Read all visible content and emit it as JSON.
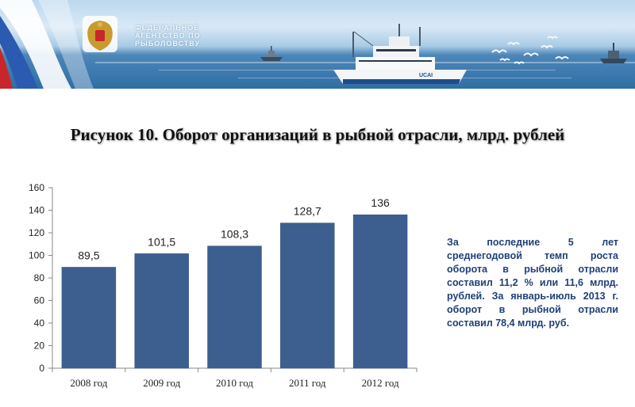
{
  "header": {
    "agency_name": "ФЕДЕРАЛЬНОЕ АГЕНТСТВО ПО РЫБОЛОВСТВУ",
    "ship_marking": "UCAI"
  },
  "chart_data": {
    "type": "bar",
    "title": "Рисунок 10. Оборот организаций в рыбной отрасли, млрд. рублей",
    "categories": [
      "2008 год",
      "2009 год",
      "2010 год",
      "2011 год",
      "2012 год"
    ],
    "values": [
      89.5,
      101.5,
      108.3,
      128.7,
      136
    ],
    "value_labels": [
      "89,5",
      "101,5",
      "108,3",
      "128,7",
      "136"
    ],
    "ylim": [
      0,
      160
    ],
    "yticks": [
      0,
      20,
      40,
      60,
      80,
      100,
      120,
      140,
      160
    ],
    "xlabel": "",
    "ylabel": "",
    "grid": false,
    "bar_color": "#3d5f8f"
  },
  "annotation": {
    "text": "За последние 5 лет среднегодовой темп роста оборота в рыбной отрасли составил 11,2 % или 11,6 млрд. рублей. За январь-июль 2013 г. оборот в рыбной отрасли составил 78,4 млрд. руб."
  }
}
